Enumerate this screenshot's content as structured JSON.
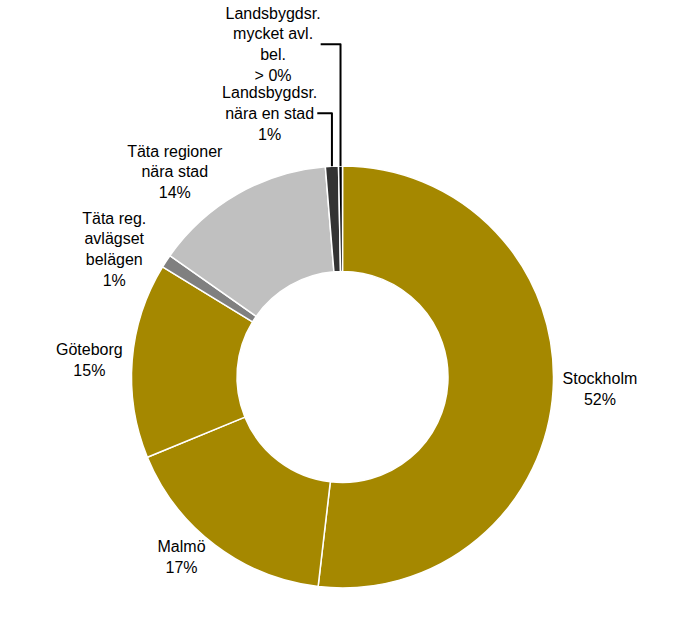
{
  "chart_data": {
    "type": "pie",
    "categories": [
      "Stockholm",
      "Malmö",
      "Göteborg",
      "Täta reg.\navlägset\nbelägen",
      "Täta regioner\nnära stad",
      "Landsbygdsr.\nnära en stad",
      "Landsbygdsr.\nmycket avl.\nbel."
    ],
    "values": [
      52,
      17,
      15,
      1,
      14,
      1,
      0.3
    ],
    "value_labels": [
      "52%",
      "17%",
      "15%",
      "1%",
      "14%",
      "1%",
      "> 0%"
    ],
    "colors": [
      "#a58800",
      "#a58800",
      "#a58800",
      "#808080",
      "#c0c0c0",
      "#333333",
      "#000000"
    ],
    "data_labels": true
  }
}
